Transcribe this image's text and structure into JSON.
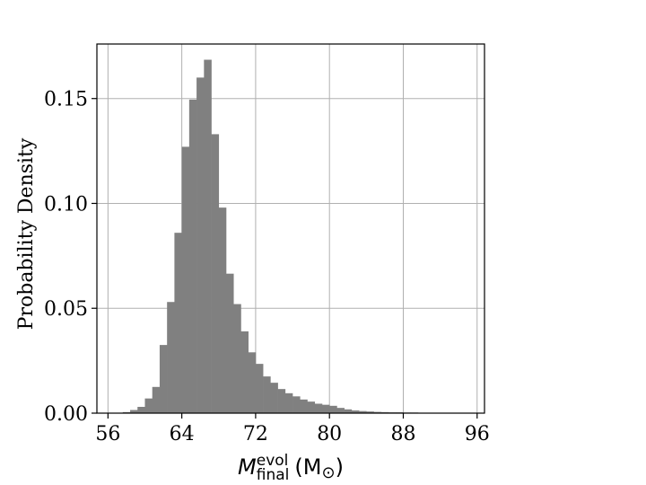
{
  "chart_data": {
    "type": "bar",
    "title": "",
    "xlabel": {
      "symbol": "M",
      "superscript": "evol",
      "subscript": "final",
      "unit_open": "(M",
      "unit_symbol": "⊙",
      "unit_close": ")"
    },
    "ylabel": "Probability Density",
    "xlim": [
      54.8,
      96.8
    ],
    "ylim": [
      0,
      0.176
    ],
    "xticks": [
      56,
      64,
      72,
      80,
      88,
      96
    ],
    "yticks": [
      0.0,
      0.05,
      0.1,
      0.15
    ],
    "ytick_labels": [
      "0.00",
      "0.05",
      "0.10",
      "0.15"
    ],
    "grid": true,
    "bar_color": "#808080",
    "bin_width": 0.8,
    "bins_left": [
      56.8,
      57.6,
      58.4,
      59.2,
      60.0,
      60.8,
      61.6,
      62.4,
      63.2,
      64.0,
      64.8,
      65.6,
      66.4,
      67.2,
      68.0,
      68.8,
      69.6,
      70.4,
      71.2,
      72.0,
      72.8,
      73.6,
      74.4,
      75.2,
      76.0,
      76.8,
      77.6,
      78.4,
      79.2,
      80.0,
      80.8,
      81.6,
      82.4,
      83.2,
      84.0,
      84.8,
      85.6,
      86.4,
      87.2,
      88.0,
      88.8,
      89.6,
      90.4,
      91.2
    ],
    "values": [
      0.0002,
      0.0005,
      0.0015,
      0.003,
      0.007,
      0.0125,
      0.0325,
      0.053,
      0.086,
      0.127,
      0.1495,
      0.16,
      0.1685,
      0.133,
      0.098,
      0.0665,
      0.052,
      0.039,
      0.029,
      0.0235,
      0.0175,
      0.0145,
      0.0115,
      0.0095,
      0.008,
      0.0065,
      0.0055,
      0.0045,
      0.004,
      0.0035,
      0.0025,
      0.0018,
      0.0013,
      0.001,
      0.0008,
      0.0006,
      0.0005,
      0.0004,
      0.0004,
      0.0003,
      0.0003,
      0.0002,
      0.0002,
      0.0001
    ]
  }
}
